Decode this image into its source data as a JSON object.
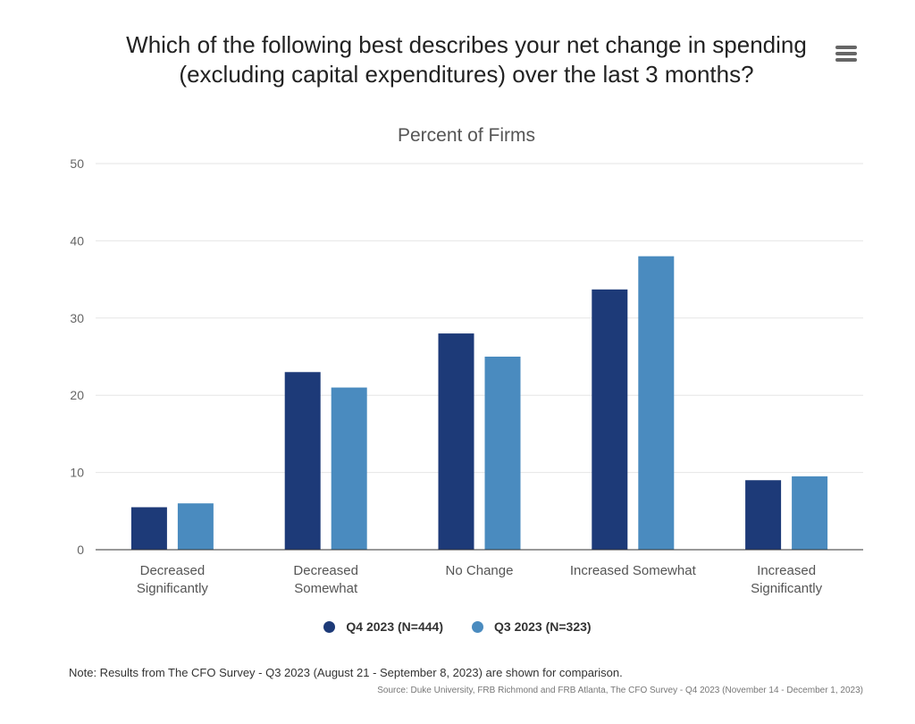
{
  "colors": {
    "series_1": "#1d3a78",
    "series_2": "#4a8bbf",
    "grid": "#e6e6e6",
    "axis": "#333333"
  },
  "menu": {
    "icon": "hamburger-menu-icon"
  },
  "chart_data": {
    "type": "bar",
    "title": "Which of the following best describes your net change in spending (excluding capital expenditures) over the last 3 months?",
    "subtitle": "Percent of Firms",
    "categories": [
      "Decreased Significantly",
      "Decreased Somewhat",
      "No Change",
      "Increased Somewhat",
      "Increased Significantly"
    ],
    "series": [
      {
        "name": "Q4 2023 (N=444)",
        "values": [
          5.5,
          23,
          28,
          33.7,
          9
        ]
      },
      {
        "name": "Q3 2023 (N=323)",
        "values": [
          6,
          21,
          25,
          38,
          9.5
        ]
      }
    ],
    "y_ticks": [
      "0",
      "10",
      "20",
      "30",
      "40",
      "50"
    ],
    "ylim": [
      0,
      50
    ],
    "grid": true,
    "legend_position": "bottom-center",
    "note": "Note: Results from The CFO Survey - Q3 2023 (August 21 - September 8, 2023) are shown for comparison.",
    "source": "Source: Duke University, FRB Richmond and FRB Atlanta, The CFO Survey - Q4 2023 (November 14 - December 1, 2023)"
  }
}
